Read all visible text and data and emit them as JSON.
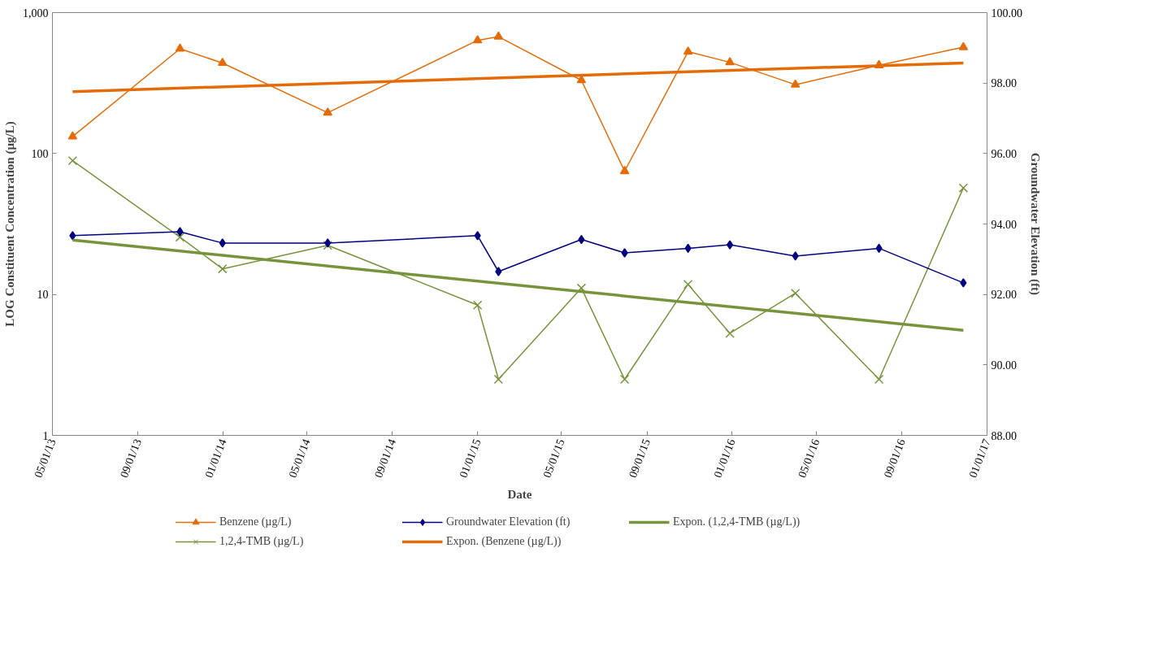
{
  "chart_data": {
    "type": "line",
    "xlabel": "Date",
    "ylabel": "LOG Constituent Concentration (µg/L)",
    "y2label": "Groundwater Elevation (ft)",
    "x": [
      "2013-05-30",
      "2013-10-31",
      "2013-12-31",
      "2014-05-31",
      "2015-01-01",
      "2015-01-31",
      "2015-05-30",
      "2015-07-31",
      "2015-10-30",
      "2015-12-29",
      "2016-04-01",
      "2016-07-30",
      "2016-11-28"
    ],
    "series": [
      {
        "name": "Benzene (µg/L)",
        "color": "#e36c09",
        "marker": "triangle",
        "values": [
          132,
          554,
          439,
          195,
          635,
          675,
          331,
          75,
          528,
          444,
          308,
          423,
          568
        ]
      },
      {
        "name": "1,2,4-TMB (µg/L)",
        "color": "#77933c",
        "marker": "cross",
        "values": [
          89,
          25.5,
          15.2,
          22.3,
          8.4,
          2.5,
          11.1,
          2.5,
          11.8,
          5.3,
          10.2,
          2.5,
          57
        ]
      },
      {
        "name": "Groundwater Elevation (ft)",
        "color": "#000080",
        "marker": "diamond",
        "axis": "y2",
        "values": [
          93.67,
          93.78,
          93.46,
          93.46,
          93.67,
          92.65,
          93.56,
          93.18,
          93.31,
          93.41,
          93.09,
          93.31,
          92.33
        ]
      },
      {
        "name": "Expon. (Benzene (µg/L))",
        "color": "#e36c09",
        "marker": "none",
        "x": [
          "2013-05-30",
          "2016-11-28"
        ],
        "values": [
          275,
          439
        ]
      },
      {
        "name": "Expon. (1,2,4-TMB (µg/L))",
        "color": "#77933c",
        "marker": "none",
        "x": [
          "2013-05-30",
          "2016-11-28"
        ],
        "values": [
          24.3,
          5.57
        ]
      }
    ],
    "log": "y",
    "ylim": [
      1,
      1000
    ],
    "yticks": [
      1,
      10,
      100,
      {
        "value": 1000,
        "label": "1,000"
      }
    ],
    "y2lim": [
      88,
      100
    ],
    "y2ticks": [
      {
        "value": 88,
        "label": "88.00"
      },
      {
        "value": 90,
        "label": "90.00"
      },
      {
        "value": 92,
        "label": "92.00"
      },
      {
        "value": 94,
        "label": "94.00"
      },
      {
        "value": 96,
        "label": "96.00"
      },
      {
        "value": 98,
        "label": "98.00"
      },
      {
        "value": 100,
        "label": "100.00"
      }
    ],
    "xlim": [
      "2013-05-01",
      "2017-01-01"
    ],
    "xticks": [
      {
        "value": "2013-05-01",
        "label": "05/01/13"
      },
      {
        "value": "2013-09-01",
        "label": "09/01/13"
      },
      {
        "value": "2014-01-01",
        "label": "01/01/14"
      },
      {
        "value": "2014-05-01",
        "label": "05/01/14"
      },
      {
        "value": "2014-09-01",
        "label": "09/01/14"
      },
      {
        "value": "2015-01-01",
        "label": "01/01/15"
      },
      {
        "value": "2015-05-01",
        "label": "05/01/15"
      },
      {
        "value": "2015-09-01",
        "label": "09/01/15"
      },
      {
        "value": "2016-01-01",
        "label": "01/01/16"
      },
      {
        "value": "2016-05-01",
        "label": "05/01/16"
      },
      {
        "value": "2016-09-01",
        "label": "09/01/16"
      },
      {
        "value": "2017-01-01",
        "label": "01/01/17"
      }
    ],
    "grid": false,
    "legend": "bottom"
  }
}
